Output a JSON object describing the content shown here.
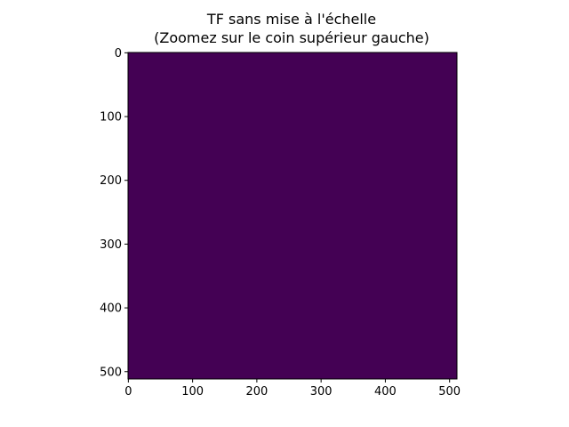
{
  "chart_data": {
    "type": "heatmap",
    "title_line1": "TF sans mise à l'échelle",
    "title_line2": "(Zoomez sur le coin supérieur gauche)",
    "xlabel": "",
    "ylabel": "",
    "image_shape": [
      512,
      512
    ],
    "xlim": [
      -0.5,
      511.5
    ],
    "ylim": [
      511.5,
      -0.5
    ],
    "x_ticks": [
      0,
      100,
      200,
      300,
      400,
      500
    ],
    "y_ticks": [
      0,
      100,
      200,
      300,
      400,
      500
    ],
    "x_tick_labels": [
      "0",
      "100",
      "200",
      "300",
      "400",
      "500"
    ],
    "y_tick_labels": [
      "0",
      "100",
      "200",
      "300",
      "400",
      "500"
    ],
    "colormap": "viridis",
    "dominant_color": "#440154",
    "grid": false,
    "legend": "none"
  }
}
